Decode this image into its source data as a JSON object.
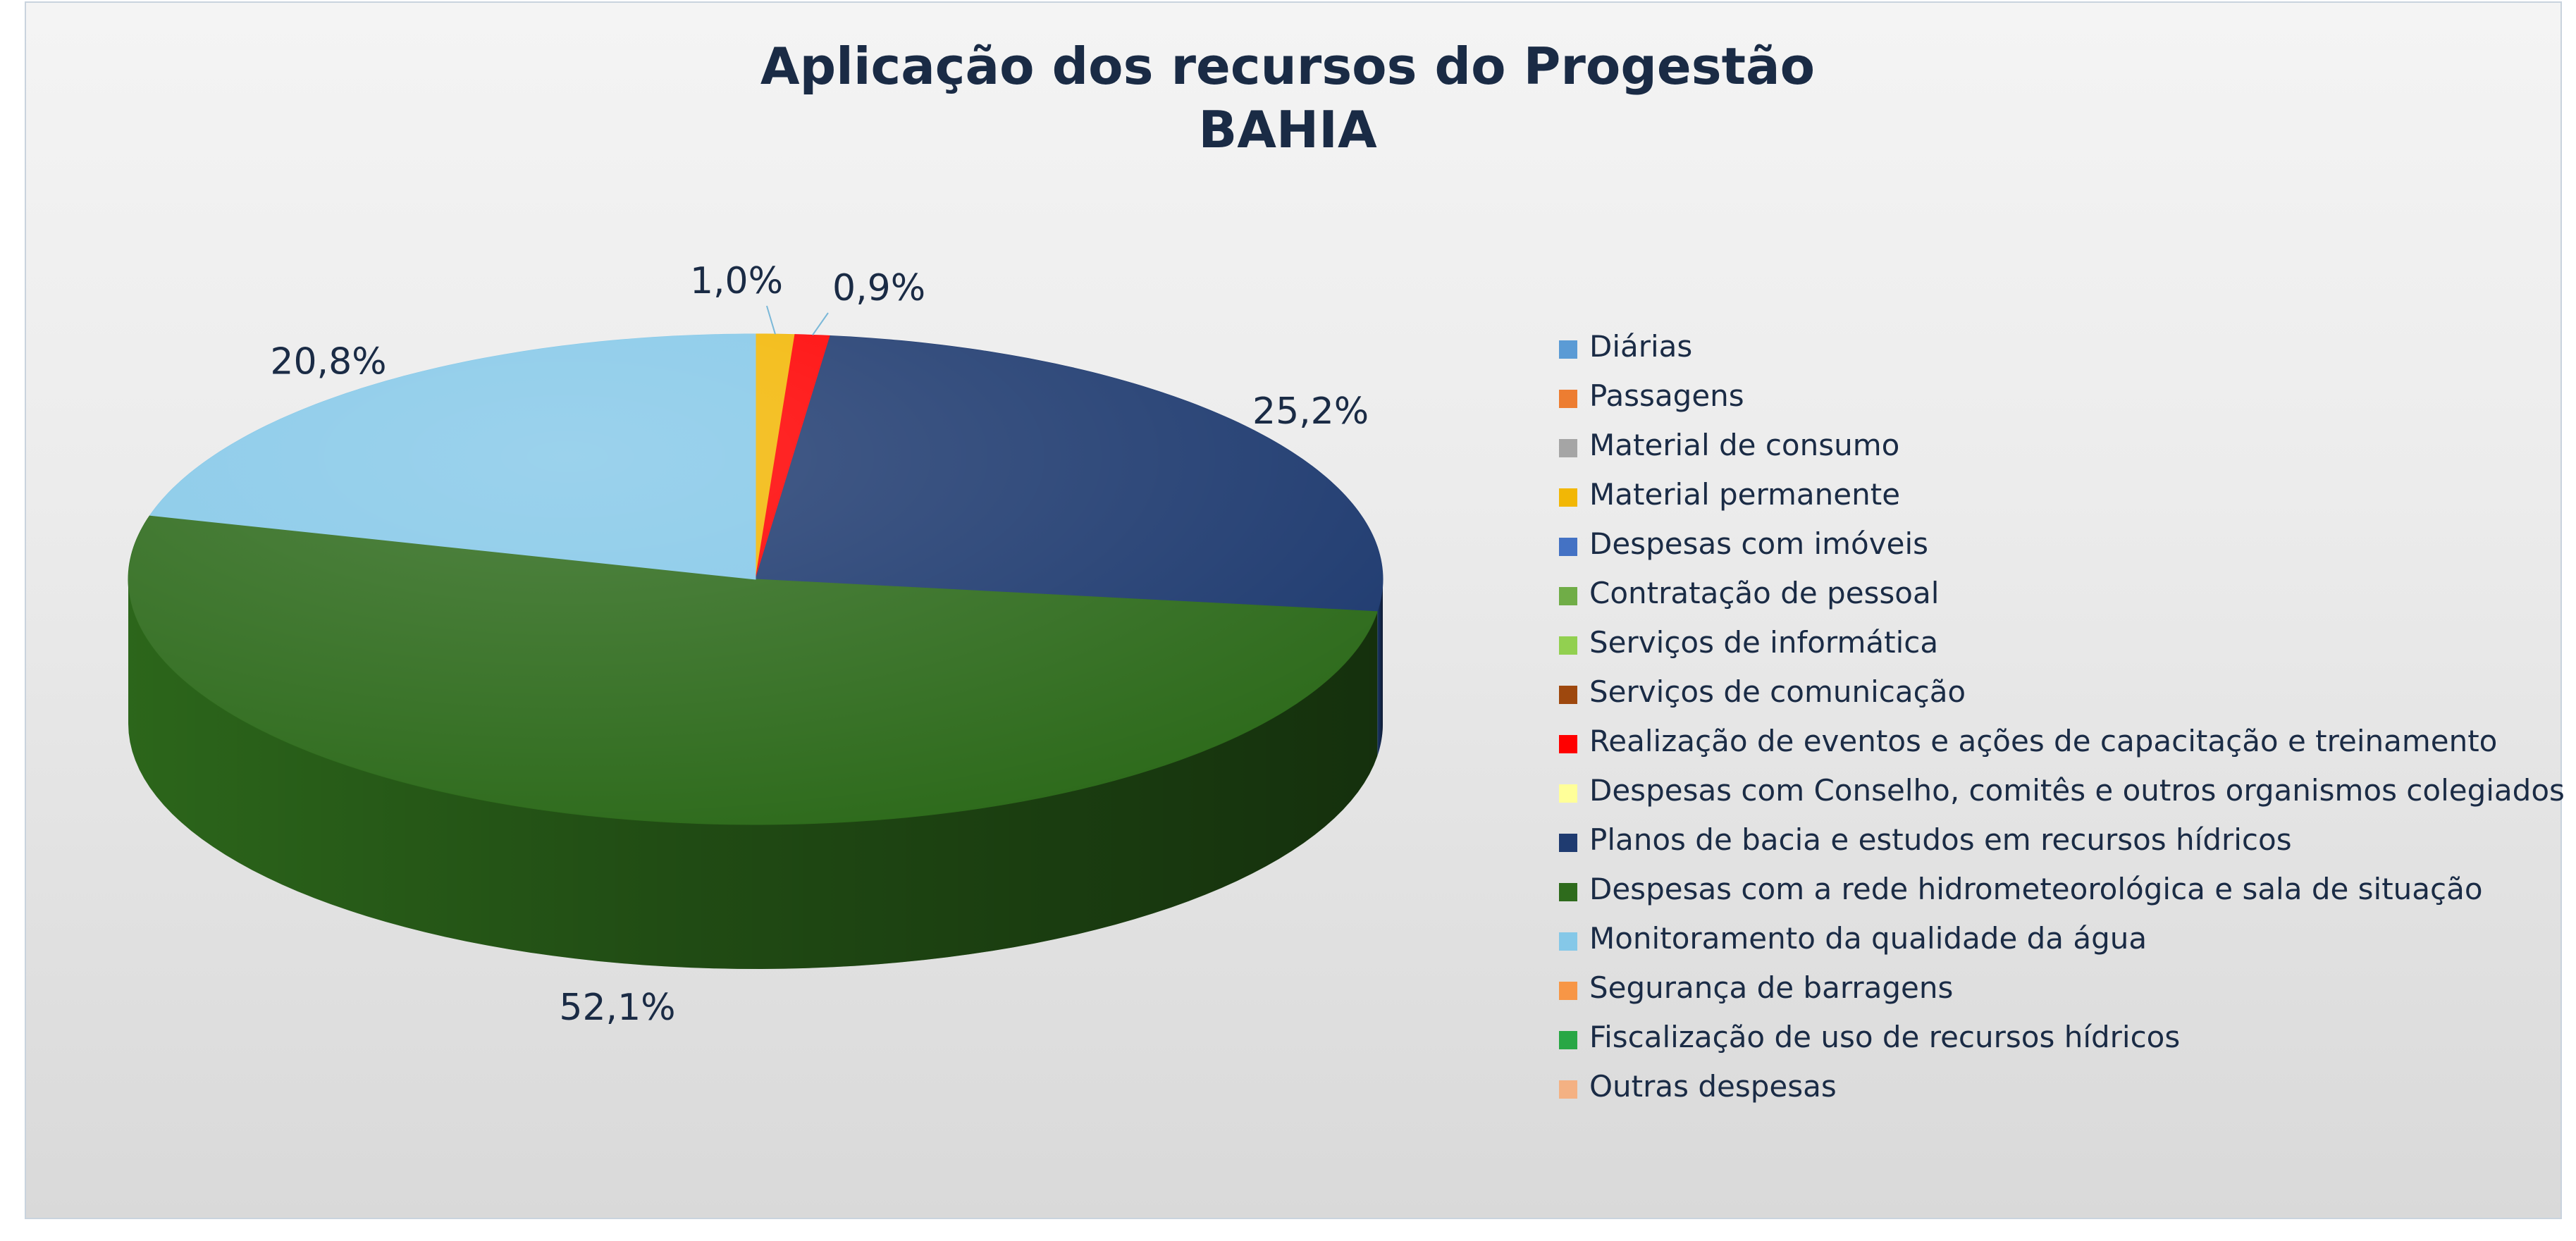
{
  "chart_data": {
    "type": "pie",
    "title": [
      "Aplicação dos recursos do Progestão",
      "BAHIA"
    ],
    "slices": [
      {
        "name": "Diárias",
        "value": 0,
        "color": "#5b9bd5"
      },
      {
        "name": "Passagens",
        "value": 0,
        "color": "#ed7d31"
      },
      {
        "name": "Material de consumo",
        "value": 0,
        "color": "#a5a5a5"
      },
      {
        "name": "Material permanente",
        "value": 1.0,
        "label": "1,0%",
        "color": "#f2b705"
      },
      {
        "name": "Despesas com imóveis",
        "value": 0,
        "color": "#4472c4"
      },
      {
        "name": "Contratação de pessoal",
        "value": 0,
        "color": "#70ad47"
      },
      {
        "name": "Serviços de informática",
        "value": 0,
        "color": "#92d050"
      },
      {
        "name": "Serviços de comunicação",
        "value": 0,
        "color": "#9e480e"
      },
      {
        "name": "Realização de eventos e ações de capacitação e treinamento",
        "value": 0.9,
        "label": "0,9%",
        "color": "#ff0000"
      },
      {
        "name": "Despesas com Conselho, comitês e outros organismos colegiados",
        "value": 0,
        "color": "#ffff99"
      },
      {
        "name": "Planos de bacia e estudos em recursos hídricos",
        "value": 25.2,
        "label": "25,2%",
        "color": "#1f3b70"
      },
      {
        "name": "Despesas com a rede hidrometeorológica e sala de situação",
        "value": 52.1,
        "label": "52,1%",
        "color": "#2e6b1c"
      },
      {
        "name": "Monitoramento da qualidade da água",
        "value": 20.8,
        "label": "20,8%",
        "color": "#85c8e8"
      },
      {
        "name": "Segurança de barragens",
        "value": 0,
        "color": "#f79646"
      },
      {
        "name": "Fiscalização de uso de recursos hídricos",
        "value": 0,
        "color": "#28a745"
      },
      {
        "name": "Outras despesas",
        "value": 0,
        "color": "#f4b183"
      }
    ],
    "start_angle_deg": 0,
    "direction": "clockwise",
    "style": "3d",
    "legend_position": "right"
  }
}
